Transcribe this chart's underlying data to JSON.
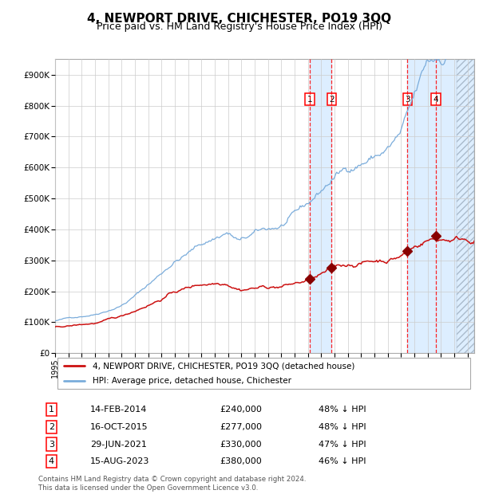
{
  "title": "4, NEWPORT DRIVE, CHICHESTER, PO19 3QQ",
  "subtitle": "Price paid vs. HM Land Registry's House Price Index (HPI)",
  "title_fontsize": 11,
  "subtitle_fontsize": 9,
  "xlim": [
    1995.0,
    2026.5
  ],
  "ylim": [
    0,
    950000
  ],
  "yticks": [
    0,
    100000,
    200000,
    300000,
    400000,
    500000,
    600000,
    700000,
    800000,
    900000
  ],
  "ytick_labels": [
    "£0",
    "£100K",
    "£200K",
    "£300K",
    "£400K",
    "£500K",
    "£600K",
    "£700K",
    "£800K",
    "£900K"
  ],
  "hpi_color": "#7aacdb",
  "price_color": "#cc1111",
  "marker_color": "#880000",
  "grid_color": "#cccccc",
  "bg_color": "#ffffff",
  "shade_color": "#ddeeff",
  "purchases": [
    {
      "num": 1,
      "date_dec": 2014.12,
      "price": 240000,
      "label": "1",
      "date_str": "14-FEB-2014",
      "pct": "48% ↓ HPI"
    },
    {
      "num": 2,
      "date_dec": 2015.79,
      "price": 277000,
      "label": "2",
      "date_str": "16-OCT-2015",
      "pct": "48% ↓ HPI"
    },
    {
      "num": 3,
      "date_dec": 2021.49,
      "price": 330000,
      "label": "3",
      "date_str": "29-JUN-2021",
      "pct": "47% ↓ HPI"
    },
    {
      "num": 4,
      "date_dec": 2023.62,
      "price": 380000,
      "label": "4",
      "date_str": "15-AUG-2023",
      "pct": "46% ↓ HPI"
    }
  ],
  "legend_entries": [
    "4, NEWPORT DRIVE, CHICHESTER, PO19 3QQ (detached house)",
    "HPI: Average price, detached house, Chichester"
  ],
  "footer": "Contains HM Land Registry data © Crown copyright and database right 2024.\nThis data is licensed under the Open Government Licence v3.0."
}
